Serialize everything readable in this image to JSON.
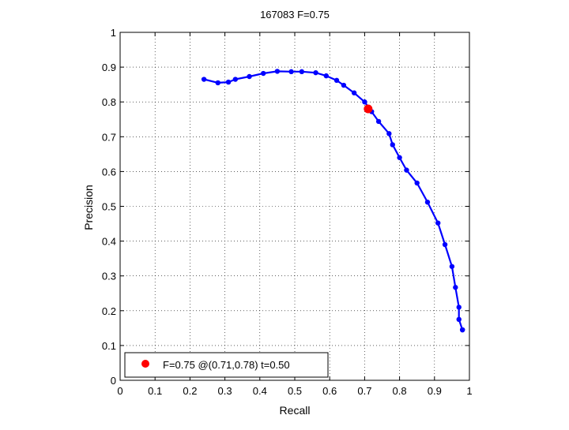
{
  "chart_data": {
    "type": "line",
    "title": "167083 F=0.75",
    "xlabel": "Recall",
    "ylabel": "Precision",
    "xlim": [
      0,
      1
    ],
    "ylim": [
      0,
      1
    ],
    "grid": true,
    "legend_position": "bottom-left",
    "xticks": [
      "0",
      "0.1",
      "0.2",
      "0.3",
      "0.4",
      "0.5",
      "0.6",
      "0.7",
      "0.8",
      "0.9",
      "1"
    ],
    "yticks": [
      "0",
      "0.1",
      "0.2",
      "0.3",
      "0.4",
      "0.5",
      "0.6",
      "0.7",
      "0.8",
      "0.9",
      "1"
    ],
    "series": [
      {
        "color": "#0000ff",
        "x": [
          0.24,
          0.28,
          0.31,
          0.33,
          0.37,
          0.41,
          0.45,
          0.49,
          0.52,
          0.56,
          0.59,
          0.62,
          0.64,
          0.67,
          0.7,
          0.72,
          0.74,
          0.77,
          0.78,
          0.8,
          0.82,
          0.85,
          0.88,
          0.91,
          0.93,
          0.95,
          0.96,
          0.97,
          0.97,
          0.98,
          0.98
        ],
        "y": [
          0.865,
          0.855,
          0.857,
          0.865,
          0.873,
          0.882,
          0.888,
          0.887,
          0.887,
          0.884,
          0.875,
          0.862,
          0.848,
          0.826,
          0.8,
          0.772,
          0.744,
          0.709,
          0.677,
          0.64,
          0.604,
          0.567,
          0.512,
          0.452,
          0.39,
          0.327,
          0.267,
          0.21,
          0.175,
          0.145,
          0.145
        ]
      }
    ],
    "highlight_point": {
      "x": 0.71,
      "y": 0.78,
      "color": "#ff0000",
      "label": "F=0.75 @(0.71,0.78) t=0.50"
    }
  }
}
